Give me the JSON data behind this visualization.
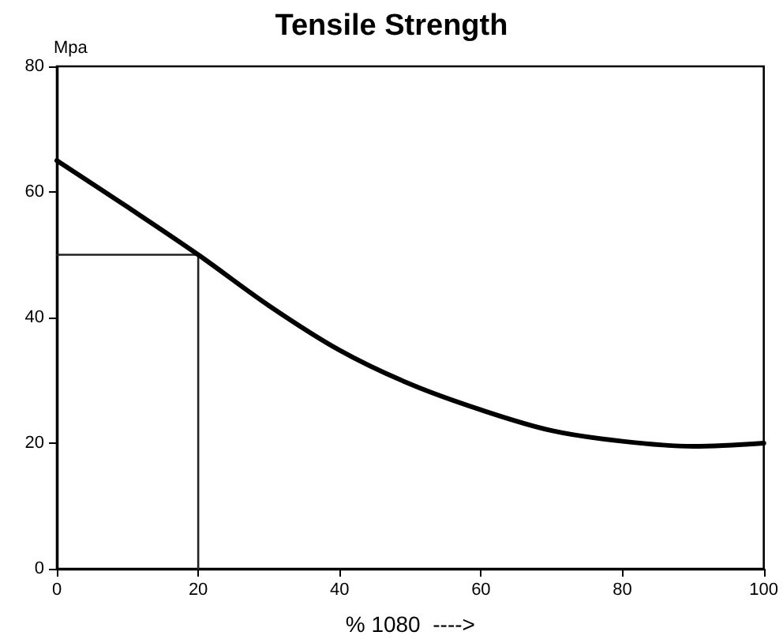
{
  "chart_data": {
    "type": "line",
    "title": "Tensile Strength",
    "xlabel": "% 1080  ---->",
    "ylabel": "Mpa",
    "xlim": [
      0,
      100
    ],
    "xticks": [
      0,
      20,
      40,
      60,
      80,
      100
    ],
    "ylim": [
      0,
      80
    ],
    "yticks": [
      0,
      20,
      40,
      60,
      80
    ],
    "grid": false,
    "marker": "none",
    "line_style": "solid",
    "series": [
      {
        "color": "#000000",
        "x": [
          0,
          10,
          20,
          30,
          40,
          50,
          60,
          70,
          80,
          90,
          100
        ],
        "values": [
          65,
          57.6,
          50,
          41.9,
          34.8,
          29.4,
          25.3,
          22,
          20.3,
          19.5,
          20
        ]
      },
      {
        "color": "#222222",
        "x": [
          0,
          20,
          20
        ],
        "values": [
          50,
          50,
          0
        ]
      }
    ]
  }
}
